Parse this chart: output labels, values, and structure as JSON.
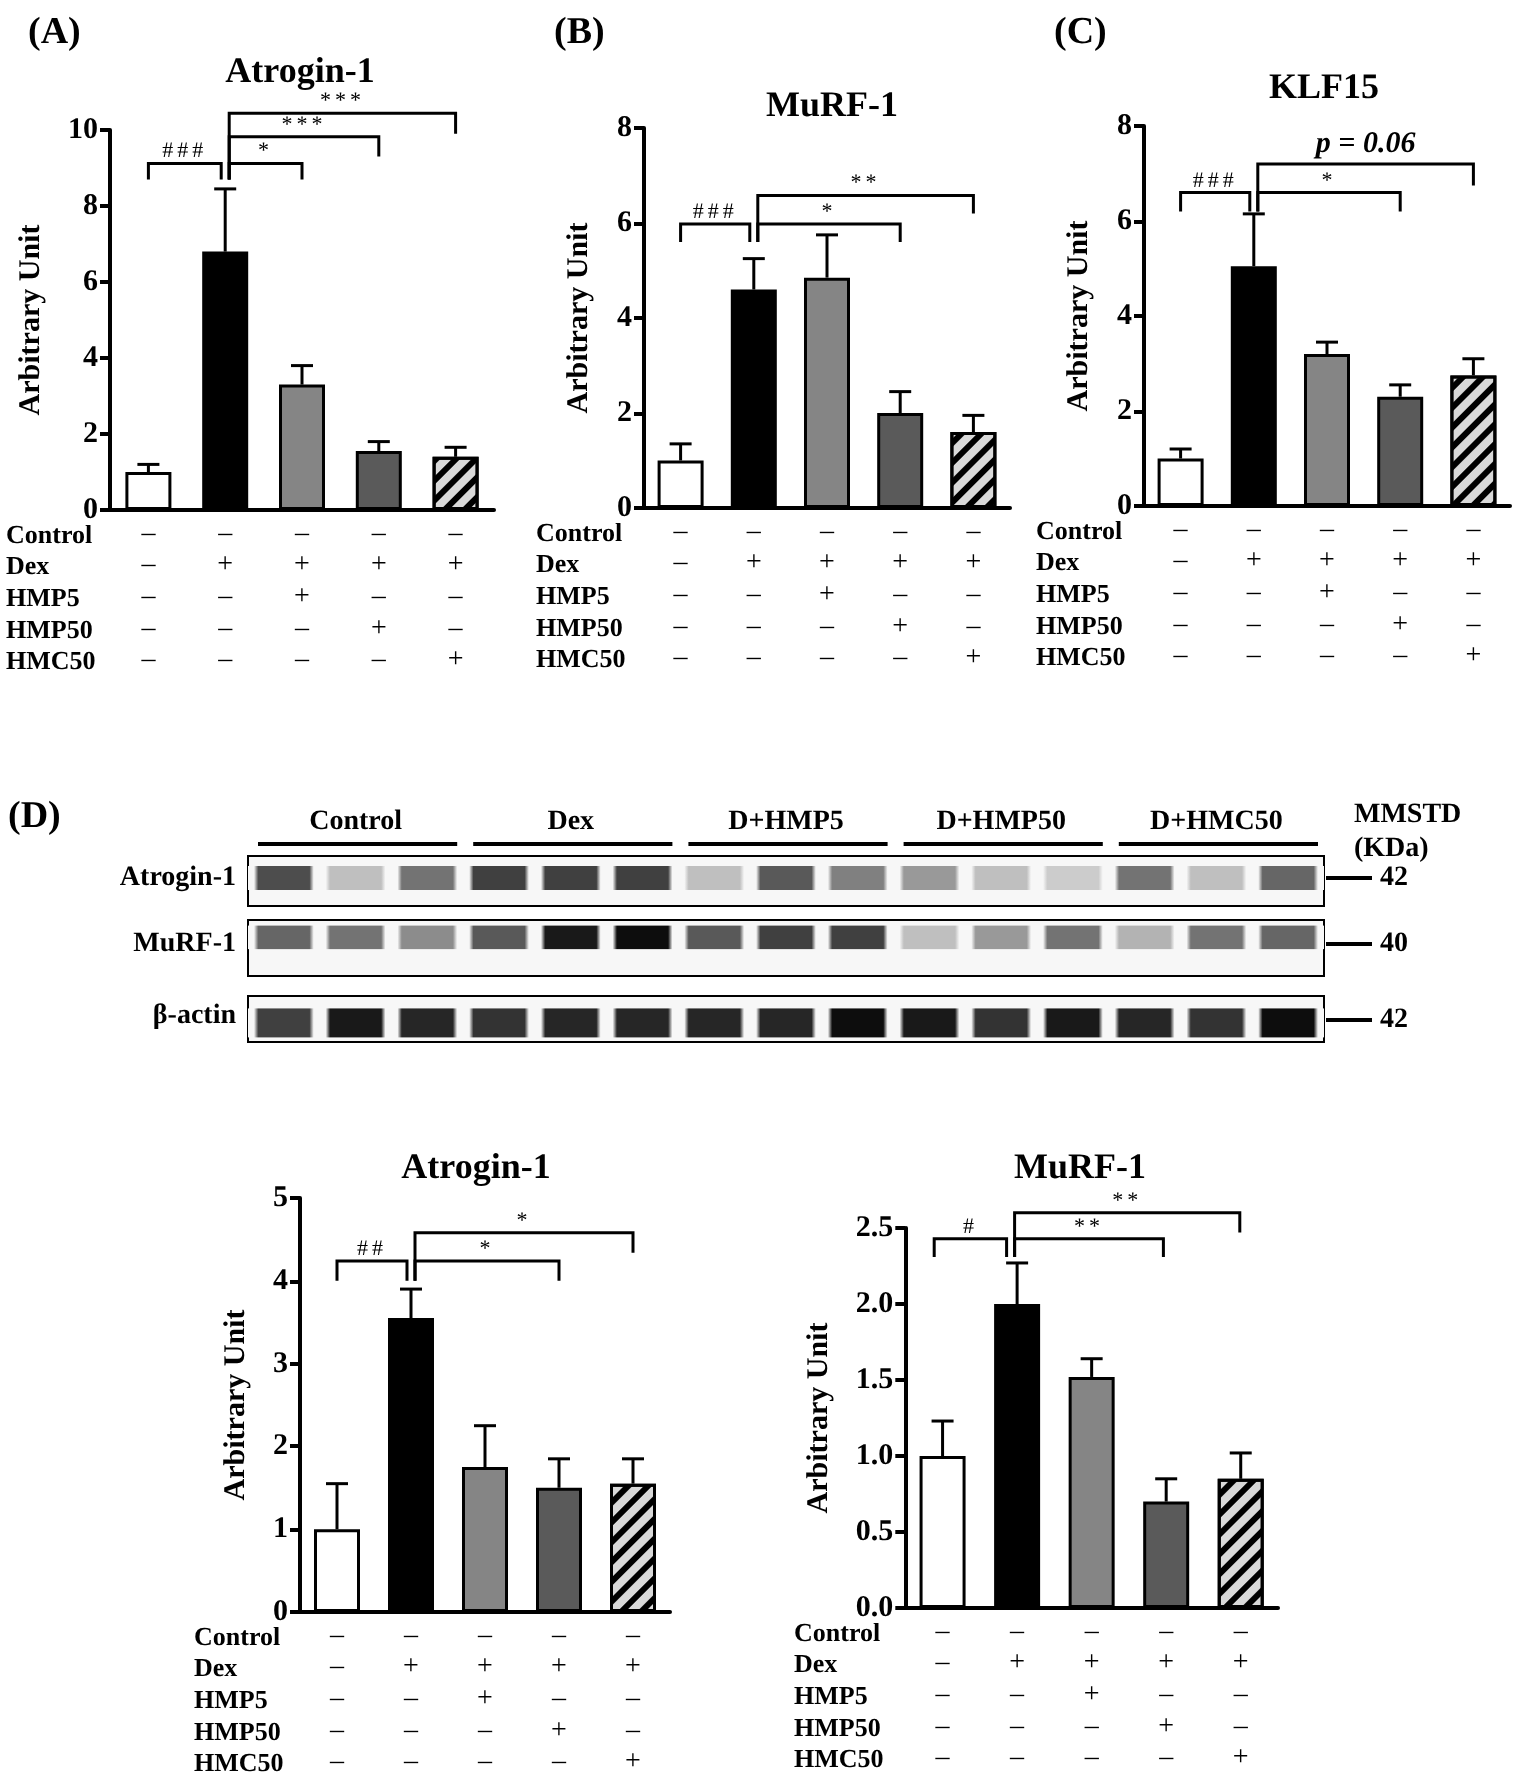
{
  "chart_data": [
    {
      "type": "bar",
      "title": "Atrogin-1",
      "ylabel": "Arbitrary Unit",
      "xlabel": "Control\nDex\nHMP5\nHMP50\nHMC50",
      "categories": [
        "–\n–\n–\n–\n–",
        "–\n+\n–\n–\n–",
        "–\n+\n+\n–\n–",
        "–\n+\n–\n+\n–",
        "–\n+\n–\n–\n+"
      ],
      "values": [
        1.0,
        6.8,
        3.3,
        1.55,
        1.4
      ],
      "errors": [
        0.2,
        1.65,
        0.5,
        0.25,
        0.25
      ],
      "colors": [
        "#ffffff",
        "#000000",
        "#858585",
        "#5a5a5a",
        "#d9d9d9"
      ],
      "ylim": [
        0,
        10
      ],
      "yticks": [
        0,
        2,
        4,
        6,
        8,
        10
      ],
      "annotations": [
        "(A)",
        "###",
        "*",
        "***",
        "***"
      ]
    },
    {
      "type": "bar",
      "title": "MuRF-1",
      "ylabel": "Arbitrary Unit",
      "xlabel": "Control\nDex\nHMP5\nHMP50\nHMC50",
      "categories": [
        "–\n–\n–\n–\n–",
        "–\n+\n–\n–\n–",
        "–\n+\n+\n–\n–",
        "–\n+\n–\n+\n–",
        "–\n+\n–\n–\n+"
      ],
      "values": [
        1.0,
        4.6,
        4.85,
        2.0,
        1.6
      ],
      "errors": [
        0.35,
        0.65,
        0.9,
        0.45,
        0.35
      ],
      "colors": [
        "#ffffff",
        "#000000",
        "#858585",
        "#5a5a5a",
        "#d9d9d9"
      ],
      "ylim": [
        0,
        8
      ],
      "yticks": [
        0,
        2,
        4,
        6,
        8
      ],
      "annotations": [
        "(B)",
        "###",
        "*",
        "**"
      ]
    },
    {
      "type": "bar",
      "title": "KLF15",
      "ylabel": "Arbitrary Unit",
      "xlabel": "Control\nDex\nHMP5\nHMP50\nHMC50",
      "categories": [
        "–\n–\n–\n–\n–",
        "–\n+\n–\n–\n–",
        "–\n+\n+\n–\n–",
        "–\n+\n–\n+\n–",
        "–\n+\n–\n–\n+"
      ],
      "values": [
        1.0,
        5.05,
        3.2,
        2.3,
        2.75
      ],
      "errors": [
        0.2,
        1.1,
        0.25,
        0.25,
        0.35
      ],
      "colors": [
        "#ffffff",
        "#000000",
        "#858585",
        "#5a5a5a",
        "#d9d9d9"
      ],
      "ylim": [
        0,
        8
      ],
      "yticks": [
        0,
        2,
        4,
        6,
        8
      ],
      "annotations": [
        "(C)",
        "###",
        "*",
        "p = 0.06"
      ]
    },
    {
      "type": "other",
      "categories": [
        "Control",
        "Dex",
        "D+HMP5",
        "D+HMP50",
        "D+HMC50"
      ],
      "y_categories": [
        "Atrogin-1",
        "MuRF-1",
        "β-actin"
      ],
      "y2_categories": [
        "42",
        "40",
        "42"
      ],
      "y2label": "MMSTD (KDa)",
      "annotations": [
        "(D)"
      ]
    },
    {
      "type": "bar",
      "title": "Atrogin-1",
      "ylabel": "Arbitrary Unit",
      "xlabel": "Control\nDex\nHMP5\nHMP50\nHMC50",
      "categories": [
        "–\n–\n–\n–\n–",
        "–\n+\n–\n–\n–",
        "–\n+\n+\n–\n–",
        "–\n+\n–\n+\n–",
        "–\n+\n–\n–\n+"
      ],
      "values": [
        1.0,
        3.55,
        1.75,
        1.5,
        1.55
      ],
      "errors": [
        0.55,
        0.35,
        0.5,
        0.35,
        0.3
      ],
      "colors": [
        "#ffffff",
        "#000000",
        "#858585",
        "#5a5a5a",
        "#d9d9d9"
      ],
      "ylim": [
        0,
        5
      ],
      "yticks": [
        0,
        1,
        2,
        3,
        4,
        5
      ],
      "annotations": [
        "##",
        "*",
        "*"
      ]
    },
    {
      "type": "bar",
      "title": "MuRF-1",
      "ylabel": "Arbitrary Unit",
      "xlabel": "Control\nDex\nHMP5\nHMP50\nHMC50",
      "categories": [
        "–\n–\n–\n–\n–",
        "–\n+\n–\n–\n–",
        "–\n+\n+\n–\n–",
        "–\n+\n–\n+\n–",
        "–\n+\n–\n–\n+"
      ],
      "values": [
        1.0,
        2.0,
        1.52,
        0.7,
        0.85
      ],
      "errors": [
        0.23,
        0.27,
        0.12,
        0.15,
        0.17
      ],
      "colors": [
        "#ffffff",
        "#000000",
        "#858585",
        "#5a5a5a",
        "#d9d9d9"
      ],
      "ylim": [
        0,
        2.5
      ],
      "yticks": [
        {
          "value": 0,
          "label": "0.0"
        },
        0.5,
        {
          "value": 1,
          "label": "1.0"
        },
        1.5,
        {
          "value": 2,
          "label": "2.0"
        },
        2.5
      ],
      "annotations": [
        "#",
        "**",
        "**"
      ]
    }
  ]
}
